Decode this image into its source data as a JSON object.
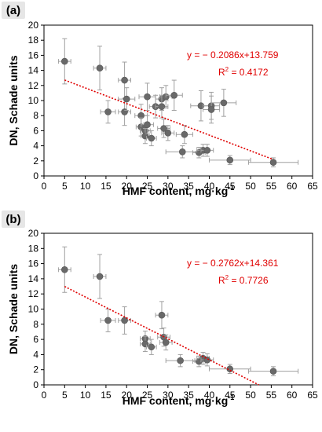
{
  "chart_data": [
    {
      "type": "scatter",
      "panel_label": "(a)",
      "xlabel": "HMF content, mg·kg",
      "xlabel_sup": "-1",
      "ylabel": "DN, Schade units",
      "xlim": [
        0,
        65
      ],
      "ylim": [
        0,
        20
      ],
      "xticks": [
        "0",
        "5",
        "10",
        "15",
        "20",
        "25",
        "30",
        "35",
        "40",
        "45",
        "50",
        "55",
        "60",
        "65"
      ],
      "yticks": [
        "0",
        "2",
        "4",
        "6",
        "8",
        "10",
        "12",
        "14",
        "16",
        "18",
        "20"
      ],
      "equation": "y = − 0.2086x+13.759",
      "r2_prefix": "R",
      "r2_sup": "2",
      "r2_suffix": " = 0.4172",
      "fit": {
        "slope": -0.2086,
        "intercept": 13.759,
        "x_range": [
          5,
          55.5
        ]
      },
      "points": [
        {
          "x": 5.0,
          "y": 15.2,
          "xerr": 1.5,
          "yerr": 3.0
        },
        {
          "x": 13.5,
          "y": 14.3,
          "xerr": 1.5,
          "yerr": 2.9
        },
        {
          "x": 15.5,
          "y": 8.5,
          "xerr": 1.8,
          "yerr": 1.5
        },
        {
          "x": 19.5,
          "y": 12.7,
          "xerr": 1.5,
          "yerr": 2.4
        },
        {
          "x": 19.5,
          "y": 8.5,
          "xerr": 1.5,
          "yerr": 1.8
        },
        {
          "x": 20.0,
          "y": 10.2,
          "xerr": 2.0,
          "yerr": 1.5
        },
        {
          "x": 23.5,
          "y": 8.0,
          "xerr": 1.5,
          "yerr": 1.5
        },
        {
          "x": 23.5,
          "y": 6.5,
          "xerr": 1.2,
          "yerr": 1.2
        },
        {
          "x": 24.5,
          "y": 6.0,
          "xerr": 1.2,
          "yerr": 1.0
        },
        {
          "x": 24.5,
          "y": 5.3,
          "xerr": 1.0,
          "yerr": 1.0
        },
        {
          "x": 25.0,
          "y": 10.5,
          "xerr": 2.0,
          "yerr": 1.8
        },
        {
          "x": 25.0,
          "y": 6.8,
          "xerr": 1.5,
          "yerr": 1.2
        },
        {
          "x": 26.0,
          "y": 5.0,
          "xerr": 1.2,
          "yerr": 1.0
        },
        {
          "x": 27.0,
          "y": 9.2,
          "xerr": 1.5,
          "yerr": 1.5
        },
        {
          "x": 28.5,
          "y": 10.2,
          "xerr": 1.5,
          "yerr": 1.5
        },
        {
          "x": 28.5,
          "y": 9.2,
          "xerr": 1.5,
          "yerr": 1.5
        },
        {
          "x": 29.0,
          "y": 6.3,
          "xerr": 1.5,
          "yerr": 1.2
        },
        {
          "x": 29.5,
          "y": 10.5,
          "xerr": 1.5,
          "yerr": 1.5
        },
        {
          "x": 30.0,
          "y": 5.7,
          "xerr": 1.5,
          "yerr": 1.0
        },
        {
          "x": 31.5,
          "y": 10.7,
          "xerr": 2.0,
          "yerr": 2.0
        },
        {
          "x": 33.5,
          "y": 3.2,
          "xerr": 4.0,
          "yerr": 0.8
        },
        {
          "x": 34.0,
          "y": 5.5,
          "xerr": 2.0,
          "yerr": 1.2
        },
        {
          "x": 37.5,
          "y": 3.1,
          "xerr": 1.5,
          "yerr": 0.7
        },
        {
          "x": 38.0,
          "y": 9.3,
          "xerr": 2.5,
          "yerr": 2.0
        },
        {
          "x": 38.5,
          "y": 3.4,
          "xerr": 1.5,
          "yerr": 0.8
        },
        {
          "x": 39.5,
          "y": 3.4,
          "xerr": 1.5,
          "yerr": 0.8
        },
        {
          "x": 40.5,
          "y": 9.3,
          "xerr": 2.0,
          "yerr": 1.8
        },
        {
          "x": 40.5,
          "y": 8.8,
          "xerr": 2.0,
          "yerr": 1.8
        },
        {
          "x": 43.5,
          "y": 9.7,
          "xerr": 3.0,
          "yerr": 1.8
        },
        {
          "x": 45.0,
          "y": 2.1,
          "xerr": 5.0,
          "yerr": 0.6
        },
        {
          "x": 55.5,
          "y": 1.8,
          "xerr": 6.0,
          "yerr": 0.6
        }
      ]
    },
    {
      "type": "scatter",
      "panel_label": "(b)",
      "xlabel": "HMF content, mg·kg",
      "xlabel_sup": "-1",
      "ylabel": "DN, Schade units",
      "xlim": [
        0,
        65
      ],
      "ylim": [
        0,
        20
      ],
      "xticks": [
        "0",
        "5",
        "10",
        "15",
        "20",
        "25",
        "30",
        "35",
        "40",
        "45",
        "50",
        "55",
        "60",
        "65"
      ],
      "yticks": [
        "0",
        "2",
        "4",
        "6",
        "8",
        "10",
        "12",
        "14",
        "16",
        "18",
        "20"
      ],
      "equation": "y = − 0.2762x+14.361",
      "r2_prefix": "R",
      "r2_sup": "2",
      "r2_suffix": " = 0.7726",
      "fit": {
        "slope": -0.2762,
        "intercept": 14.361,
        "x_range": [
          5,
          52
        ]
      },
      "points": [
        {
          "x": 5.0,
          "y": 15.2,
          "xerr": 1.5,
          "yerr": 3.0
        },
        {
          "x": 13.5,
          "y": 14.3,
          "xerr": 1.5,
          "yerr": 2.9
        },
        {
          "x": 15.5,
          "y": 8.5,
          "xerr": 1.8,
          "yerr": 1.5
        },
        {
          "x": 19.5,
          "y": 8.5,
          "xerr": 1.5,
          "yerr": 1.8
        },
        {
          "x": 24.5,
          "y": 6.1,
          "xerr": 1.2,
          "yerr": 1.0
        },
        {
          "x": 24.5,
          "y": 5.4,
          "xerr": 1.2,
          "yerr": 1.0
        },
        {
          "x": 26.0,
          "y": 5.0,
          "xerr": 1.2,
          "yerr": 1.0
        },
        {
          "x": 28.5,
          "y": 9.2,
          "xerr": 1.5,
          "yerr": 1.8
        },
        {
          "x": 29.0,
          "y": 6.3,
          "xerr": 1.5,
          "yerr": 1.2
        },
        {
          "x": 29.5,
          "y": 5.6,
          "xerr": 1.5,
          "yerr": 1.0
        },
        {
          "x": 33.0,
          "y": 3.2,
          "xerr": 3.5,
          "yerr": 0.8
        },
        {
          "x": 37.5,
          "y": 3.1,
          "xerr": 1.5,
          "yerr": 0.7
        },
        {
          "x": 38.5,
          "y": 3.5,
          "xerr": 1.5,
          "yerr": 0.8
        },
        {
          "x": 39.5,
          "y": 3.3,
          "xerr": 1.5,
          "yerr": 0.8
        },
        {
          "x": 45.0,
          "y": 2.1,
          "xerr": 5.0,
          "yerr": 0.6
        },
        {
          "x": 55.5,
          "y": 1.8,
          "xerr": 6.0,
          "yerr": 0.6
        }
      ]
    }
  ],
  "colors": {
    "marker": "#696969",
    "errorbar": "#a0a0a0",
    "fit_line": "#e00000",
    "equation_text": "#e00000",
    "panel_label_bg": "#e6e6e6"
  }
}
